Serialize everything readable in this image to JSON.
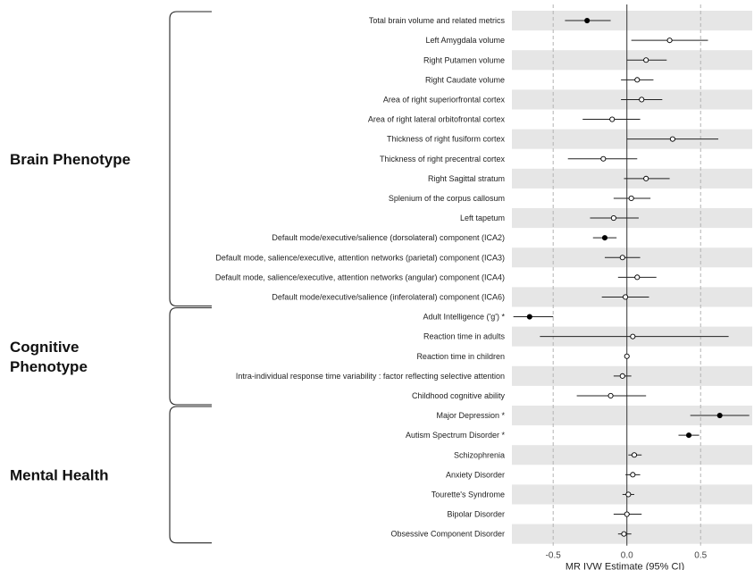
{
  "chart_data": {
    "type": "forest",
    "xlabel": "MR IVW Estimate (95% CI)",
    "xlim": [
      -0.78,
      0.85
    ],
    "xticks": [
      -0.5,
      0.0,
      0.5
    ],
    "xtick_labels": [
      "-0.5",
      "0.0",
      "0.5"
    ],
    "grid": "dashed vertical at ticks; solid reference line at 0",
    "row_shading": "alternating grey bands",
    "groups": [
      {
        "label_lines": [
          "Brain Phenotype"
        ],
        "first_row": 0,
        "last_row": 14
      },
      {
        "label_lines": [
          "Cognitive",
          "Phenotype"
        ],
        "first_row": 15,
        "last_row": 19
      },
      {
        "label_lines": [
          "Mental Health"
        ],
        "first_row": 20,
        "last_row": 26
      }
    ],
    "rows": [
      {
        "label": "Total brain volume and related metrics",
        "estimate": -0.27,
        "lower": -0.42,
        "upper": -0.11,
        "significant": true
      },
      {
        "label": "Left Amygdala volume",
        "estimate": 0.29,
        "lower": 0.03,
        "upper": 0.55,
        "significant": false
      },
      {
        "label": "Right Putamen volume",
        "estimate": 0.13,
        "lower": 0.0,
        "upper": 0.27,
        "significant": false
      },
      {
        "label": "Right Caudate volume",
        "estimate": 0.07,
        "lower": -0.04,
        "upper": 0.18,
        "significant": false
      },
      {
        "label": "Area of right superiorfrontal cortex",
        "estimate": 0.1,
        "lower": -0.04,
        "upper": 0.24,
        "significant": false
      },
      {
        "label": "Area of right lateral orbitofrontal cortex",
        "estimate": -0.1,
        "lower": -0.3,
        "upper": 0.09,
        "significant": false
      },
      {
        "label": "Thickness of right fusiform cortex",
        "estimate": 0.31,
        "lower": 0.0,
        "upper": 0.62,
        "significant": false
      },
      {
        "label": "Thickness of right precentral cortex",
        "estimate": -0.16,
        "lower": -0.4,
        "upper": 0.07,
        "significant": false
      },
      {
        "label": "Right Sagittal stratum",
        "estimate": 0.13,
        "lower": -0.02,
        "upper": 0.29,
        "significant": false
      },
      {
        "label": "Splenium of the corpus callosum",
        "estimate": 0.03,
        "lower": -0.09,
        "upper": 0.16,
        "significant": false
      },
      {
        "label": "Left tapetum",
        "estimate": -0.09,
        "lower": -0.25,
        "upper": 0.08,
        "significant": false
      },
      {
        "label": "Default mode/executive/salience (dorsolateral) component (ICA2)",
        "estimate": -0.15,
        "lower": -0.23,
        "upper": -0.07,
        "significant": true
      },
      {
        "label": "Default mode, salience/executive, attention networks (parietal) component (ICA3)",
        "estimate": -0.03,
        "lower": -0.15,
        "upper": 0.09,
        "significant": false
      },
      {
        "label": "Default mode, salience/executive, attention networks (angular) component (ICA4)",
        "estimate": 0.07,
        "lower": -0.06,
        "upper": 0.2,
        "significant": false
      },
      {
        "label": "Default mode/executive/salience (inferolateral) component (ICA6)",
        "estimate": -0.01,
        "lower": -0.17,
        "upper": 0.15,
        "significant": false
      },
      {
        "label": "Adult Intelligence ('g') *",
        "estimate": -0.66,
        "lower": -0.77,
        "upper": -0.5,
        "significant": true
      },
      {
        "label": "Reaction time in adults",
        "estimate": 0.04,
        "lower": -0.59,
        "upper": 0.69,
        "significant": false
      },
      {
        "label": "Reaction time in children",
        "estimate": 0.0,
        "lower": -0.01,
        "upper": 0.01,
        "significant": false
      },
      {
        "label": "Intra-individual response time variability : factor reflecting selective attention",
        "estimate": -0.03,
        "lower": -0.09,
        "upper": 0.03,
        "significant": false
      },
      {
        "label": "Childhood cognitive ability",
        "estimate": -0.11,
        "lower": -0.34,
        "upper": 0.13,
        "significant": false
      },
      {
        "label": "Major Depression *",
        "estimate": 0.63,
        "lower": 0.43,
        "upper": 0.83,
        "significant": true
      },
      {
        "label": "Autism Spectrum Disorder *",
        "estimate": 0.42,
        "lower": 0.35,
        "upper": 0.49,
        "significant": true
      },
      {
        "label": "Schizophrenia",
        "estimate": 0.05,
        "lower": 0.01,
        "upper": 0.1,
        "significant": false
      },
      {
        "label": "Anxiety Disorder",
        "estimate": 0.04,
        "lower": -0.01,
        "upper": 0.09,
        "significant": false
      },
      {
        "label": "Tourette's Syndrome",
        "estimate": 0.01,
        "lower": -0.03,
        "upper": 0.05,
        "significant": false
      },
      {
        "label": "Bipolar Disorder",
        "estimate": 0.0,
        "lower": -0.09,
        "upper": 0.1,
        "significant": false
      },
      {
        "label": "Obsessive Component Disorder",
        "estimate": -0.02,
        "lower": -0.06,
        "upper": 0.03,
        "significant": false
      }
    ],
    "colors": {
      "band": "#e6e6e6",
      "grid": "#b3b3b3",
      "zero_line": "#333333",
      "ci": "#222222",
      "point_significant": "#000000",
      "point_nonsignificant": "#ffffff",
      "brace": "#222222"
    }
  }
}
